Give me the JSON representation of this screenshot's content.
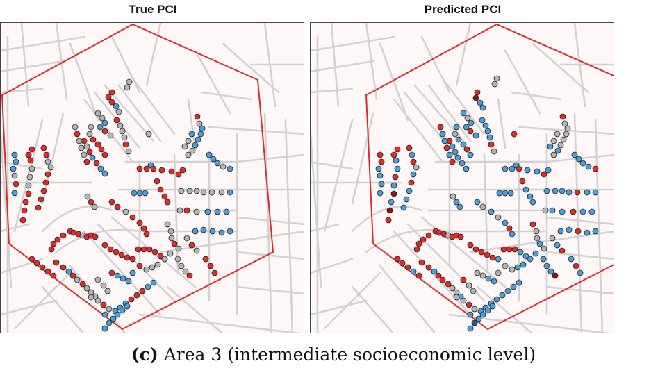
{
  "panels": [
    {
      "title": "True PCI"
    },
    {
      "title": "Predicted PCI"
    }
  ],
  "caption": {
    "label": "(c)",
    "text": "Area 3 (intermediate socioeconomic level)"
  },
  "colors": {
    "background": "#fdf7f8",
    "road": "#d4d1d2",
    "boundary": "#de2b2b",
    "class_red": "#e32a2a",
    "class_gray": "#b4b4b4",
    "class_blue": "#4a9fdb",
    "class_darkred": "#8e1414",
    "class_darkblue": "#1e5a96"
  }
}
